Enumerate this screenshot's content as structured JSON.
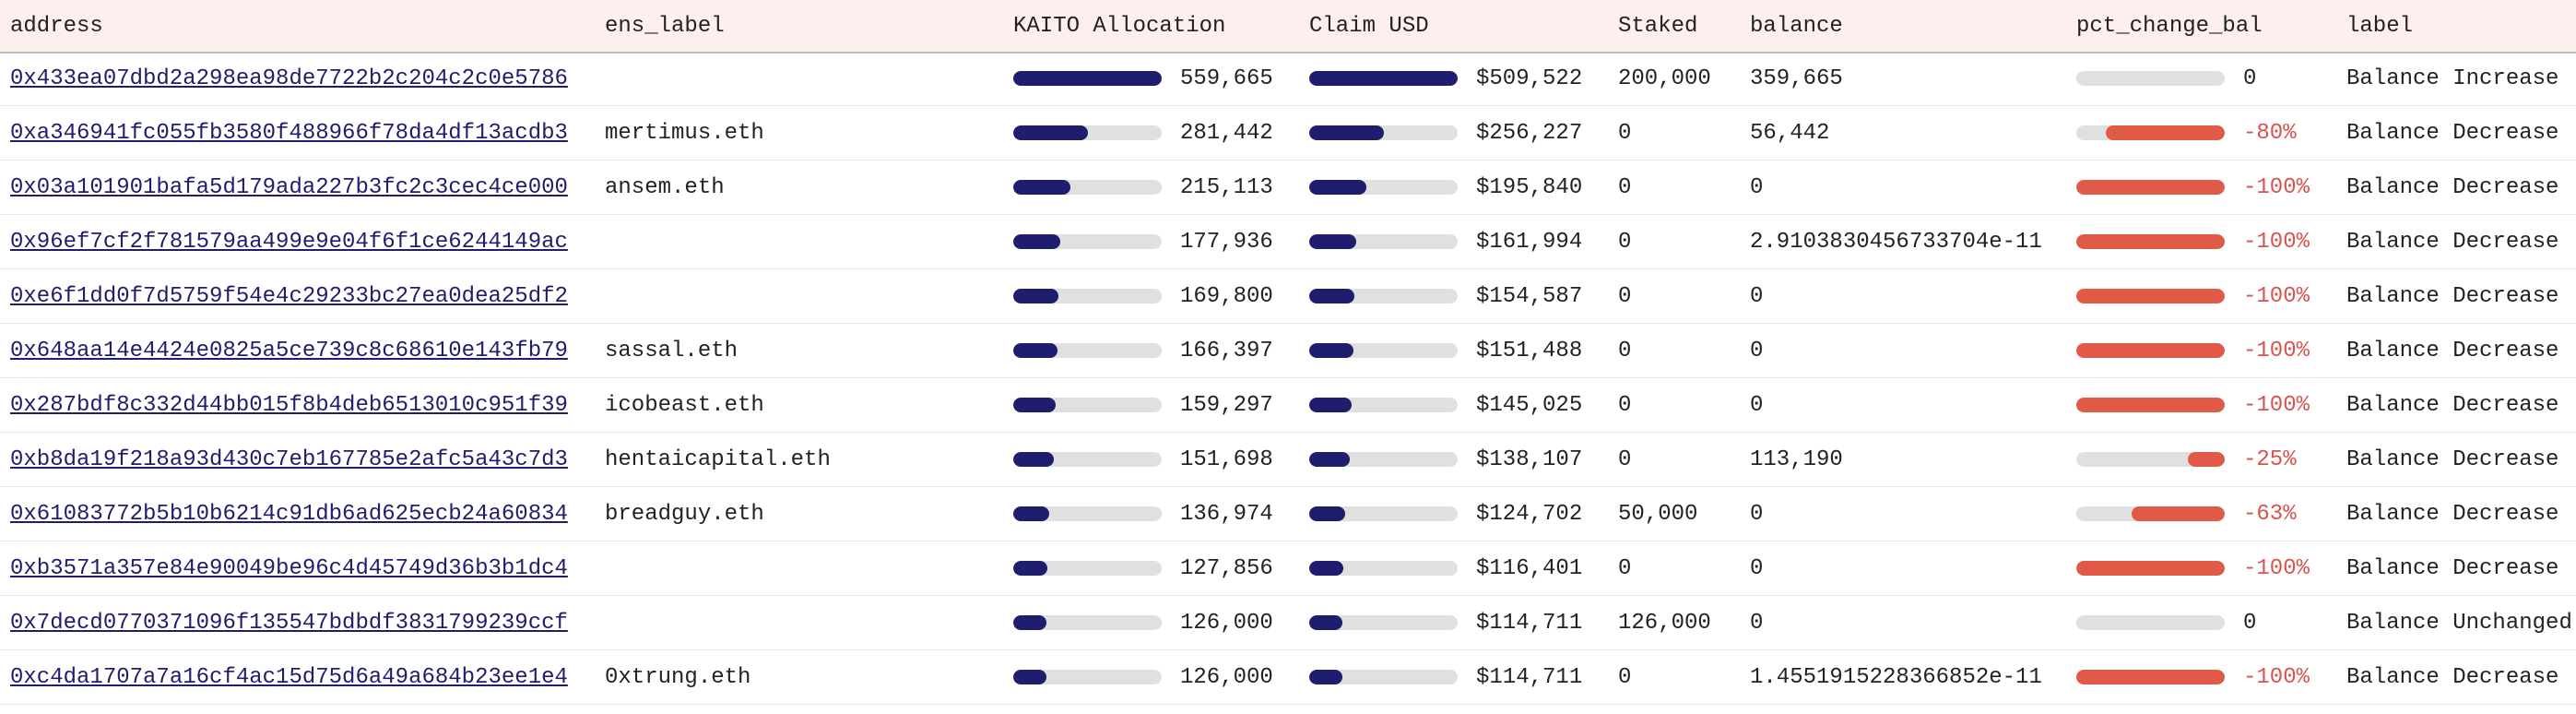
{
  "table": {
    "columns": [
      "address",
      "ens_label",
      "KAITO Allocation",
      "Claim USD",
      "Staked",
      "balance",
      "pct_change_bal",
      "label"
    ],
    "rows": [
      [
        "0x433ea07dbd2a298ea98de7722b2c204c2c0e5786",
        null,
        {
          "value": 559665,
          "label": "559,665"
        },
        {
          "value": 509522,
          "label": "$509,522"
        },
        "200,000",
        "359,665",
        0,
        "Balance Increase"
      ],
      [
        "0xa346941fc055fb3580f488966f78da4df13acdb3",
        "mertimus.eth",
        {
          "value": 281442,
          "label": "281,442"
        },
        {
          "value": 256227,
          "label": "$256,227"
        },
        "0",
        "56,442",
        {
          "value": -80,
          "label": "-80%"
        },
        "Balance Decrease"
      ],
      [
        "0x03a101901bafa5d179ada227b3fc2c3cec4ce000",
        "ansem.eth",
        {
          "value": 215113,
          "label": "215,113"
        },
        {
          "value": 195840,
          "label": "$195,840"
        },
        "0",
        "0",
        {
          "value": -100,
          "label": "-100%"
        },
        "Balance Decrease"
      ],
      [
        "0x96ef7cf2f781579aa499e9e04f6f1ce6244149ac",
        null,
        {
          "value": 177936,
          "label": "177,936"
        },
        {
          "value": 161994,
          "label": "$161,994"
        },
        "0",
        "2.9103830456733704e-11",
        {
          "value": -100,
          "label": "-100%"
        },
        "Balance Decrease"
      ],
      [
        "0xe6f1dd0f7d5759f54e4c29233bc27ea0dea25df2",
        null,
        {
          "value": 169800,
          "label": "169,800"
        },
        {
          "value": 154587,
          "label": "$154,587"
        },
        "0",
        "0",
        {
          "value": -100,
          "label": "-100%"
        },
        "Balance Decrease"
      ],
      [
        "0x648aa14e4424e0825a5ce739c8c68610e143fb79",
        "sassal.eth",
        {
          "value": 166397,
          "label": "166,397"
        },
        {
          "value": 151488,
          "label": "$151,488"
        },
        "0",
        "0",
        {
          "value": -100,
          "label": "-100%"
        },
        "Balance Decrease"
      ],
      [
        "0x287bdf8c332d44bb015f8b4deb6513010c951f39",
        "icobeast.eth",
        {
          "value": 159297,
          "label": "159,297"
        },
        {
          "value": 145025,
          "label": "$145,025"
        },
        "0",
        "0",
        {
          "value": -100,
          "label": "-100%"
        },
        "Balance Decrease"
      ],
      [
        "0xb8da19f218a93d430c7eb167785e2afc5a43c7d3",
        "hentaicapital.eth",
        {
          "value": 151698,
          "label": "151,698"
        },
        {
          "value": 138107,
          "label": "$138,107"
        },
        "0",
        "113,190",
        {
          "value": -25,
          "label": "-25%"
        },
        "Balance Decrease"
      ],
      [
        "0x61083772b5b10b6214c91db6ad625ecb24a60834",
        "breadguy.eth",
        {
          "value": 136974,
          "label": "136,974"
        },
        {
          "value": 124702,
          "label": "$124,702"
        },
        "50,000",
        "0",
        {
          "value": -63,
          "label": "-63%"
        },
        "Balance Decrease"
      ],
      [
        "0xb3571a357e84e90049be96c4d45749d36b3b1dc4",
        null,
        {
          "value": 127856,
          "label": "127,856"
        },
        {
          "value": 116401,
          "label": "$116,401"
        },
        "0",
        "0",
        {
          "value": -100,
          "label": "-100%"
        },
        "Balance Decrease"
      ],
      [
        "0x7decd0770371096f135547bdbdf3831799239ccf",
        null,
        {
          "value": 126000,
          "label": "126,000"
        },
        {
          "value": 114711,
          "label": "$114,711"
        },
        "126,000",
        "0",
        0,
        "Balance Unchanged"
      ],
      [
        "0xc4da1707a7a16cf4ac15d75d6a49a684b23ee1e4",
        "0xtrung.eth",
        {
          "value": 126000,
          "label": "126,000"
        },
        {
          "value": 114711,
          "label": "$114,711"
        },
        "0",
        "1.4551915228366852e-11",
        {
          "value": -100,
          "label": "-100%"
        },
        "Balance Decrease"
      ]
    ]
  }
}
